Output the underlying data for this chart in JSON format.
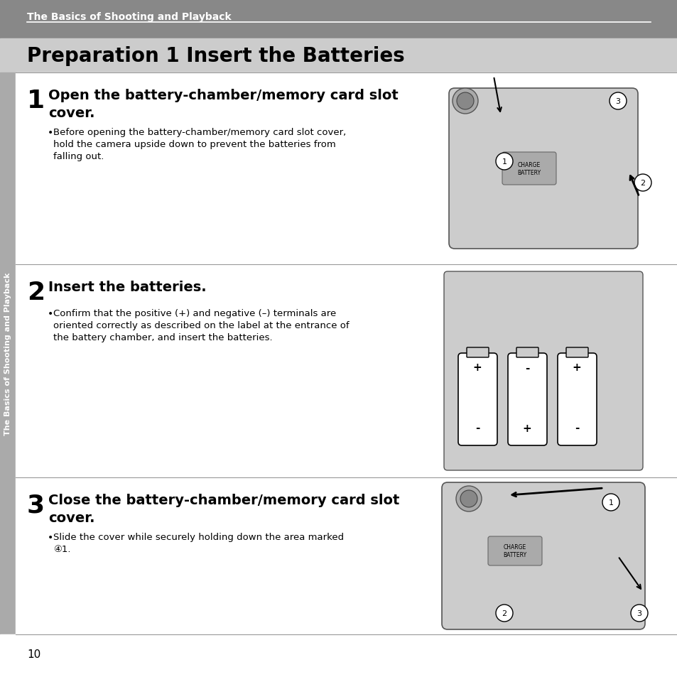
{
  "bg_color": "#ffffff",
  "header_bg": "#888888",
  "header_text": "The Basics of Shooting and Playback",
  "header_text_color": "#ffffff",
  "title": "Preparation 1 Insert the Batteries",
  "title_color": "#000000",
  "title_bg": "#cccccc",
  "sidebar_bg": "#aaaaaa",
  "page_number": "10",
  "sidebar_text": "The Basics of Shooting and Playback",
  "steps": [
    {
      "number": "1",
      "heading": "Open the battery-chamber/memory card slot\ncover.",
      "bullet": "Before opening the battery-chamber/memory card slot cover,\nhold the camera upside down to prevent the batteries from\nfalling out."
    },
    {
      "number": "2",
      "heading": "Insert the batteries.",
      "bullet": "Confirm that the positive (+) and negative (–) terminals are\noriented correctly as described on the label at the entrance of\nthe battery chamber, and insert the batteries."
    },
    {
      "number": "3",
      "heading": "Close the battery-chamber/memory card slot\ncover.",
      "bullet": "Slide the cover while securely holding down the area marked\n④1."
    }
  ]
}
